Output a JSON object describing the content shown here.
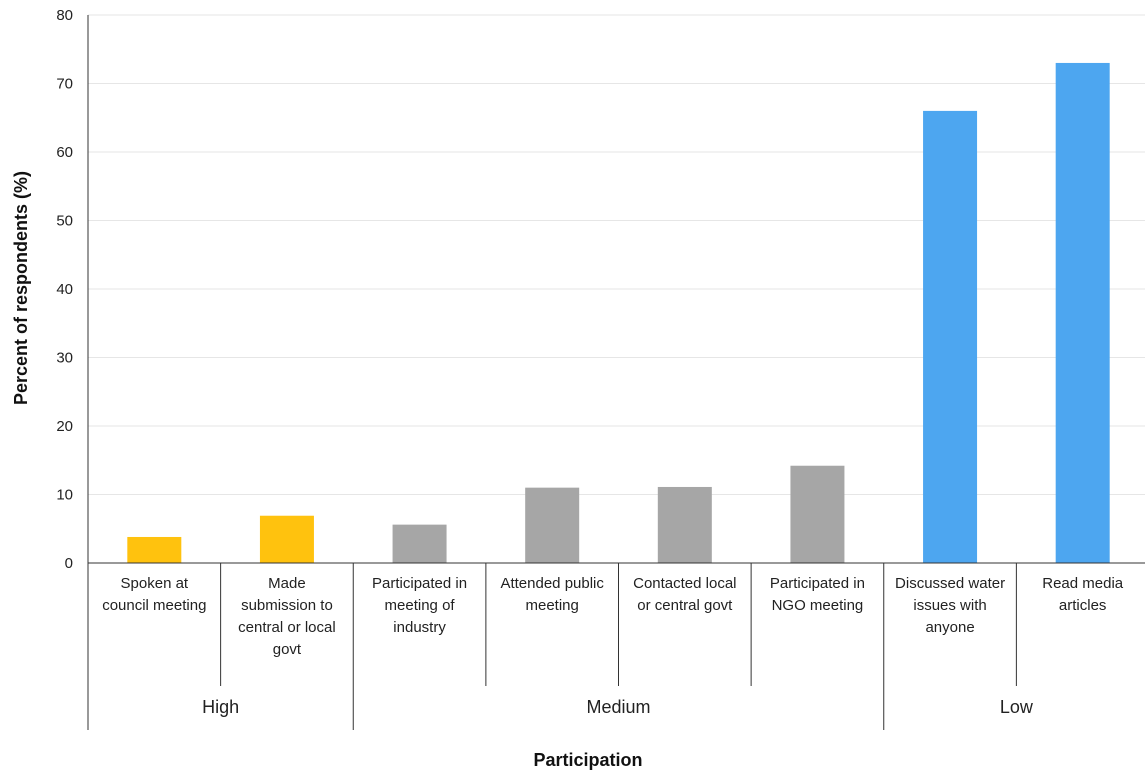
{
  "chart_data": {
    "type": "bar",
    "xlabel": "Participation",
    "ylabel": "Percent of respondents (%)",
    "ylim": [
      0,
      80
    ],
    "yticks": [
      0,
      10,
      20,
      30,
      40,
      50,
      60,
      70,
      80
    ],
    "grid": true,
    "groups": [
      {
        "label": "High",
        "color": "#FFC20E",
        "count": 2
      },
      {
        "label": "Medium",
        "color": "#A6A6A6",
        "count": 4
      },
      {
        "label": "Low",
        "color": "#4DA6F0",
        "count": 2
      }
    ],
    "categories": [
      [
        "Spoken at",
        "council meeting"
      ],
      [
        "Made",
        "submission to",
        "central or local",
        "govt"
      ],
      [
        "Participated in",
        "meeting of",
        "industry"
      ],
      [
        "Attended public",
        "meeting"
      ],
      [
        "Contacted local",
        "or central govt"
      ],
      [
        "Participated in",
        "NGO meeting"
      ],
      [
        "Discussed water",
        "issues with",
        "anyone"
      ],
      [
        "Read media",
        "articles"
      ]
    ],
    "values": [
      3.8,
      6.9,
      5.6,
      11.0,
      11.1,
      14.2,
      66.0,
      73.0
    ]
  }
}
